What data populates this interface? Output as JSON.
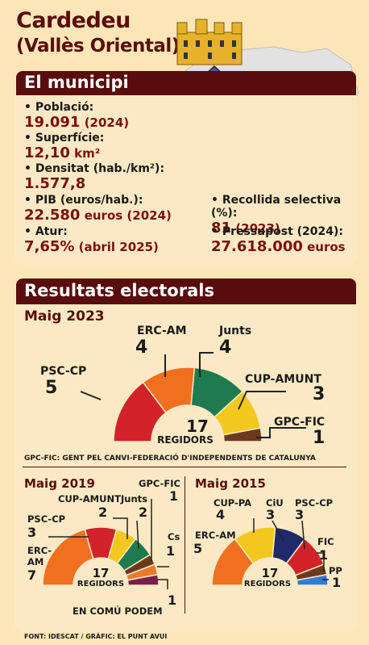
{
  "header": {
    "title": "Cardedeu",
    "subtitle": "(Vallès Oriental)"
  },
  "municipi": {
    "heading": "El municipi",
    "stats": [
      {
        "label": "• Població:",
        "value": "19.091",
        "extra": " (2024)"
      },
      {
        "label": "• Superfície:",
        "value": "12,10",
        "extra": " km²"
      },
      {
        "label": "• Densitat (hab./km²):",
        "value": "1.577,8",
        "extra": ""
      },
      {
        "label": "• PIB (euros/hab.):",
        "value": "22.580",
        "extra": " euros (2024)"
      },
      {
        "label": "• Atur:",
        "value": "7,65%",
        "extra": " (abril 2025)"
      }
    ],
    "stats_right": [
      {
        "label": "• Recollida selectiva (%):",
        "value": "81",
        "extra": " (2023)"
      },
      {
        "label": "• Pressupost (2024):",
        "value": "27.618.000",
        "extra": " euros"
      }
    ]
  },
  "resultats": {
    "heading": "Resultats electorals",
    "note": "GPC-FIC: GENT PEL CANVI-FEDERACIÓ D'INDEPENDENTS DE CATALUNYA",
    "source": "FONT: IDESCAT / GRÀFIC: EL PUNT AVUI"
  },
  "chart_data": [
    {
      "type": "pie",
      "title": "Maig 2023",
      "total_label": "17",
      "total_sub": "REGIDORS",
      "categories": [
        "PSC-CP",
        "ERC-AM",
        "Junts",
        "CUP-AMUNT",
        "GPC-FIC"
      ],
      "values": [
        5,
        4,
        4,
        3,
        1
      ],
      "colors": [
        "#d2232a",
        "#f07020",
        "#1f7a4f",
        "#f2c81e",
        "#6b3a1e"
      ]
    },
    {
      "type": "pie",
      "title": "Maig 2019",
      "total_label": "17",
      "total_sub": "REGIDORS",
      "categories": [
        "ERC-AM",
        "PSC-CP",
        "CUP-AMUNT",
        "Junts",
        "GPC-FIC",
        "Cs",
        "EN COMÚ PODEM"
      ],
      "values": [
        7,
        3,
        2,
        2,
        1,
        1,
        1
      ],
      "colors": [
        "#f07020",
        "#d2232a",
        "#f2c81e",
        "#1f7a4f",
        "#6b3a1e",
        "#e87b2a",
        "#7a1f4a"
      ]
    },
    {
      "type": "pie",
      "title": "Maig 2015",
      "total_label": "17",
      "total_sub": "REGIDORS",
      "categories": [
        "ERC-AM",
        "CUP-PA",
        "CiU",
        "PSC-CP",
        "FIC",
        "PP"
      ],
      "values": [
        5,
        4,
        3,
        3,
        1,
        1
      ],
      "colors": [
        "#f07020",
        "#f2c81e",
        "#1f2a6b",
        "#d2232a",
        "#6b3a1e",
        "#2f7bd6"
      ]
    }
  ]
}
